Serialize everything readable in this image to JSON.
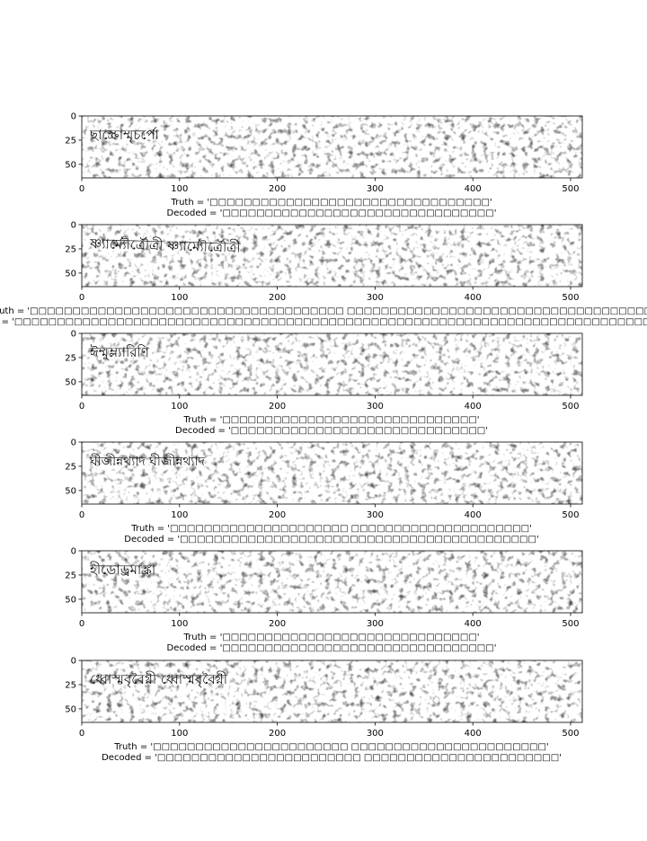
{
  "figure": {
    "panels": [
      {
        "image_word": "ছাস্ক্রোম্মৃচর্পো",
        "image_word_size": 15,
        "image_word_rotate": 0,
        "truth_label": "Truth = '□□□□□□□□□□□□□□□□□□□□□□□□□□□□□□□□□'",
        "decoded_label": "Decoded = '□□□□□□□□□□□□□□□□□□□□□□□□□□□□□□□□'"
      },
      {
        "image_word": "ষ্ণ্যার্ম্যৌর্ত্রৌত্রী ষ্ণ্যার্ম্যৌর্ত্রৌত্রী",
        "image_word_size": 15,
        "image_word_rotate": 1.6,
        "truth_label": "Truth = '□□□□□□□□□□□□□□□□□□□□□□□□□□□□□□□□□□□□□ □□□□□□□□□□□□□□□□□□□□□□□□□□□□□□□□□□□□□□'",
        "decoded_label": "Decoded = '□□□□□□□□□□□□□□□□□□□□□□□□□□□□□□□□□□□□□□□□□□□□□□□□□□□□□□□□□□□□□□□□□□□□□□□□□□□□□□□□□'"
      },
      {
        "image_word": "ঈম্মুম্ল্যারিণি",
        "image_word_size": 15,
        "image_word_rotate": 0,
        "truth_label": "Truth = '□□□□□□□□□□□□□□□□□□□□□□□□□□□□□□'",
        "decoded_label": "Decoded = '□□□□□□□□□□□□□□□□□□□□□□□□□□□□□□'"
      },
      {
        "image_word": "ঘীজীন্নথ্যাদ ঘীজীন্নথ্যাদ",
        "image_word_size": 14,
        "image_word_rotate": 0,
        "truth_label": "Truth = '□□□□□□□□□□□□□□□□□□□□□ □□□□□□□□□□□□□□□□□□□□□'",
        "decoded_label": "Decoded = '□□□□□□□□□□□□□□□□□□□□□□□□□□□□□□□□□□□□□□□□□□'"
      },
      {
        "image_word": "হীডোড্রমাঙ্ক্রা",
        "image_word_size": 15,
        "image_word_rotate": 0,
        "truth_label": "Truth = '□□□□□□□□□□□□□□□□□□□□□□□□□□□□□□'",
        "decoded_label": "Decoded = '□□□□□□□□□□□□□□□□□□□□□□□□□□□□□□□□'"
      },
      {
        "image_word": "ধ্বোস্মবৃবৈগ্নী ধ্বোস্মবৃবৈগ্নী",
        "image_word_size": 15,
        "image_word_rotate": 0,
        "truth_label": "Truth = '□□□□□□□□□□□□□□□□□□□□□□□ □□□□□□□□□□□□□□□□□□□□□□□'",
        "decoded_label": "Decoded = '□□□□□□□□□□□□□□□□□□□□□□□□ □□□□□□□□□□□□□□□□□□□□□□□'"
      }
    ]
  },
  "chart_data": [
    {
      "type": "heatmap",
      "xlim": [
        0,
        512
      ],
      "ylim": [
        0,
        64
      ],
      "xticks": [
        0,
        100,
        200,
        300,
        400,
        500
      ],
      "yticks": [
        0,
        25,
        50
      ],
      "xlabel": "",
      "ylabel": "",
      "grid": false,
      "truth": "□□□□□□□□□□□□□□□□□□□□□□□□□□□□□□□□□",
      "decoded": "□□□□□□□□□□□□□□□□□□□□□□□□□□□□□□□□"
    },
    {
      "type": "heatmap",
      "xlim": [
        0,
        512
      ],
      "ylim": [
        0,
        64
      ],
      "xticks": [
        0,
        100,
        200,
        300,
        400,
        500
      ],
      "yticks": [
        0,
        25,
        50
      ],
      "xlabel": "",
      "ylabel": "",
      "grid": false,
      "truth": "□□□□□□□□□□□□□□□□□□□□□□□□□□□□□□□□□□□□□ □□□□□□□□□□□□□□□□□□□□□□□□□□□□□□□□□□□□□□",
      "decoded": "□□□□□□□□□□□□□□□□□□□□□□□□□□□□□□□□□□□□□□□□□□□□□□□□□□□□□□□□□□□□□□□□□□□□□□□□□□□□□□□□□"
    },
    {
      "type": "heatmap",
      "xlim": [
        0,
        512
      ],
      "ylim": [
        0,
        64
      ],
      "xticks": [
        0,
        100,
        200,
        300,
        400,
        500
      ],
      "yticks": [
        0,
        25,
        50
      ],
      "xlabel": "",
      "ylabel": "",
      "grid": false,
      "truth": "□□□□□□□□□□□□□□□□□□□□□□□□□□□□□□",
      "decoded": "□□□□□□□□□□□□□□□□□□□□□□□□□□□□□□"
    },
    {
      "type": "heatmap",
      "xlim": [
        0,
        512
      ],
      "ylim": [
        0,
        64
      ],
      "xticks": [
        0,
        100,
        200,
        300,
        400,
        500
      ],
      "yticks": [
        0,
        25,
        50
      ],
      "xlabel": "",
      "ylabel": "",
      "grid": false,
      "truth": "□□□□□□□□□□□□□□□□□□□□□ □□□□□□□□□□□□□□□□□□□□□",
      "decoded": "□□□□□□□□□□□□□□□□□□□□□□□□□□□□□□□□□□□□□□□□□□"
    },
    {
      "type": "heatmap",
      "xlim": [
        0,
        512
      ],
      "ylim": [
        0,
        64
      ],
      "xticks": [
        0,
        100,
        200,
        300,
        400,
        500
      ],
      "yticks": [
        0,
        25,
        50
      ],
      "xlabel": "",
      "ylabel": "",
      "grid": false,
      "truth": "□□□□□□□□□□□□□□□□□□□□□□□□□□□□□□",
      "decoded": "□□□□□□□□□□□□□□□□□□□□□□□□□□□□□□□□"
    },
    {
      "type": "heatmap",
      "xlim": [
        0,
        512
      ],
      "ylim": [
        0,
        64
      ],
      "xticks": [
        0,
        100,
        200,
        300,
        400,
        500
      ],
      "yticks": [
        0,
        25,
        50
      ],
      "xlabel": "",
      "ylabel": "",
      "grid": false,
      "truth": "□□□□□□□□□□□□□□□□□□□□□□□ □□□□□□□□□□□□□□□□□□□□□□□",
      "decoded": "□□□□□□□□□□□□□□□□□□□□□□□□ □□□□□□□□□□□□□□□□□□□□□□□"
    }
  ]
}
